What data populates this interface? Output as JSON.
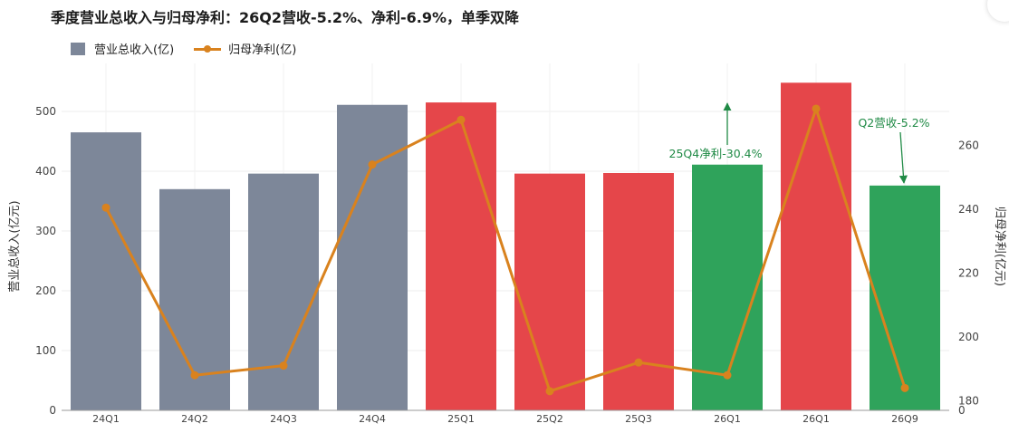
{
  "page": {
    "title": "季度营业总收入与归母净利：26Q2营收-5.2%、净利-6.9%，单季双降"
  },
  "legend": {
    "revenue_label": "营业总收入(亿)",
    "profit_label": "归母净利(亿)"
  },
  "chart_data": {
    "type": "bar",
    "title": "季度营业总收入与归母净利：26Q2营收-5.2%、净利-6.9%，单季双降",
    "categories": [
      "24Q1",
      "24Q2",
      "24Q3",
      "24Q4",
      "25Q1",
      "25Q2",
      "25Q3",
      "26Q1",
      "26Q1",
      "26Q9"
    ],
    "ylabel": "营业总收入(亿元)",
    "y2label": "归母净利(亿元)",
    "ylim": [
      0,
      550
    ],
    "y2lim": [
      177,
      280
    ],
    "y_ticks": [
      0,
      100,
      200,
      300,
      400,
      500
    ],
    "y2_ticks": [
      180,
      200,
      220,
      240,
      260
    ],
    "y2_tick_labels": [
      "180",
      "200",
      "220",
      "240",
      "260"
    ],
    "y2_zero_label": "0",
    "grid": true,
    "legend_position": "top-left",
    "series": [
      {
        "name": "营业总收入(亿)",
        "kind": "bar",
        "axis": "left",
        "values": [
          465,
          370,
          396,
          511,
          515,
          396,
          397,
          411,
          548,
          376
        ],
        "colors": [
          "#7d8799",
          "#7d8799",
          "#7d8799",
          "#7d8799",
          "#e5464a",
          "#e5464a",
          "#e5464a",
          "#2fa35b",
          "#e5464a",
          "#2fa35b"
        ]
      },
      {
        "name": "归母净利(亿)",
        "kind": "line",
        "axis": "right",
        "color": "#d9821e",
        "values": [
          240.5,
          188,
          191,
          254,
          268,
          183,
          192,
          188,
          271.5,
          184
        ]
      }
    ],
    "annotations": [
      {
        "text": "25Q4净利-30.4%",
        "category_index": 7,
        "color": "#1f8a45"
      },
      {
        "text": "Q2营收-5.2%",
        "category_index": 9,
        "color": "#1f8a45"
      }
    ]
  }
}
